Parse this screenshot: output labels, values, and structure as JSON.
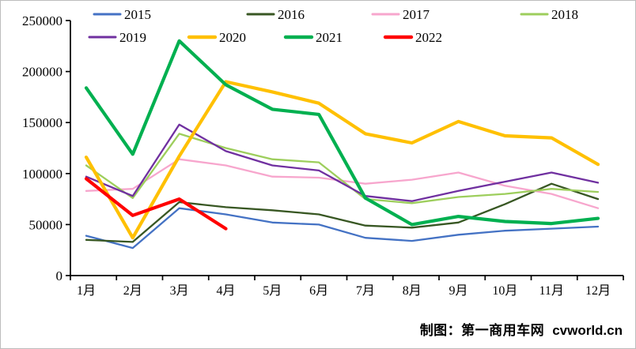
{
  "chart_data": {
    "type": "line",
    "title": "",
    "categories": [
      "1月",
      "2月",
      "3月",
      "4月",
      "5月",
      "6月",
      "7月",
      "8月",
      "9月",
      "10月",
      "11月",
      "12月"
    ],
    "ylim": [
      0,
      250000
    ],
    "y_ticks": [
      {
        "value": 0,
        "label": "0"
      },
      {
        "value": 50000,
        "label": "50000"
      },
      {
        "value": 100000,
        "label": "100000"
      },
      {
        "value": 150000,
        "label": "150000"
      },
      {
        "value": 200000,
        "label": "200000"
      },
      {
        "value": 250000,
        "label": "250000"
      }
    ],
    "grid": false,
    "legend_position": "top",
    "legend_rows": [
      [
        "2015",
        "2016",
        "2017",
        "2018"
      ],
      [
        "2019",
        "2020",
        "2021",
        "2022"
      ]
    ],
    "series": [
      {
        "name": "2015",
        "color": "#4472C4",
        "thick": false,
        "values": [
          39000,
          27000,
          66000,
          60000,
          52000,
          50000,
          37000,
          34000,
          40000,
          44000,
          46000,
          48000
        ]
      },
      {
        "name": "2016",
        "color": "#385723",
        "thick": false,
        "values": [
          35000,
          33000,
          72000,
          67000,
          64000,
          60000,
          49000,
          47000,
          52000,
          70000,
          90000,
          75000
        ]
      },
      {
        "name": "2017",
        "color": "#F7A6CD",
        "thick": false,
        "values": [
          83000,
          85000,
          114000,
          108000,
          97000,
          96000,
          90000,
          94000,
          101000,
          88000,
          80000,
          66000
        ]
      },
      {
        "name": "2018",
        "color": "#9DCE5C",
        "thick": false,
        "values": [
          108000,
          76000,
          139000,
          125000,
          114000,
          111000,
          75000,
          71000,
          77000,
          80000,
          85000,
          82000
        ]
      },
      {
        "name": "2019",
        "color": "#7030A0",
        "thick": false,
        "values": [
          97000,
          78000,
          148000,
          122000,
          108000,
          103000,
          78000,
          73000,
          83000,
          92000,
          101000,
          91000
        ]
      },
      {
        "name": "2020",
        "color": "#FFC000",
        "thick": true,
        "values": [
          116000,
          37000,
          117000,
          190000,
          180000,
          169000,
          139000,
          130000,
          151000,
          137000,
          135000,
          109000
        ]
      },
      {
        "name": "2021",
        "color": "#00B050",
        "thick": true,
        "values": [
          184000,
          119000,
          230000,
          187000,
          163000,
          158000,
          76000,
          50000,
          58000,
          53000,
          51000,
          56000
        ]
      },
      {
        "name": "2022",
        "color": "#FF0000",
        "thick": true,
        "values": [
          95000,
          59000,
          75000,
          46000,
          null,
          null,
          null,
          null,
          null,
          null,
          null,
          null
        ]
      }
    ]
  },
  "footer": {
    "credit": "制图：第一商用车网",
    "site": "cvworld.cn"
  }
}
